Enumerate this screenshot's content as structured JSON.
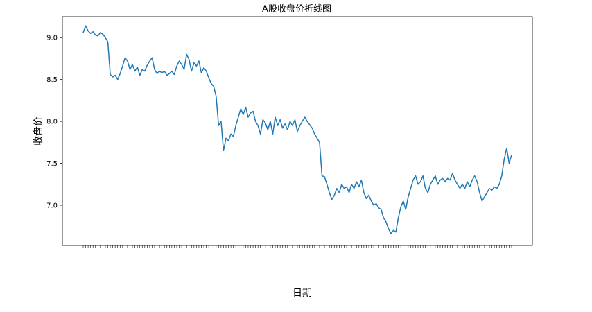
{
  "chart_data": {
    "type": "line",
    "title": "A股收盘价折线图",
    "xlabel": "日期",
    "ylabel": "收盘价",
    "ylim": [
      6.52,
      9.25
    ],
    "yticks": [
      7.0,
      7.5,
      8.0,
      8.5,
      9.0
    ],
    "ytick_labels": [
      "7.0",
      "7.5",
      "8.0",
      "8.5",
      "9.0"
    ],
    "grid": false,
    "line_color": "#1f77b4",
    "series": [
      {
        "values": [
          9.06,
          9.14,
          9.08,
          9.05,
          9.07,
          9.03,
          9.02,
          9.06,
          9.04,
          9.0,
          8.95,
          8.56,
          8.53,
          8.55,
          8.5,
          8.57,
          8.66,
          8.76,
          8.72,
          8.62,
          8.68,
          8.6,
          8.65,
          8.55,
          8.62,
          8.6,
          8.67,
          8.72,
          8.76,
          8.62,
          8.57,
          8.6,
          8.58,
          8.6,
          8.55,
          8.57,
          8.6,
          8.56,
          8.66,
          8.72,
          8.68,
          8.62,
          8.8,
          8.74,
          8.6,
          8.7,
          8.66,
          8.72,
          8.58,
          8.64,
          8.6,
          8.52,
          8.45,
          8.42,
          8.3,
          7.95,
          8.0,
          7.65,
          7.8,
          7.77,
          7.85,
          7.82,
          7.95,
          8.05,
          8.15,
          8.08,
          8.17,
          8.05,
          8.1,
          8.12,
          8.0,
          7.95,
          7.85,
          8.02,
          7.98,
          7.9,
          8.0,
          7.85,
          8.05,
          7.95,
          8.02,
          7.92,
          7.97,
          7.9,
          8.0,
          7.95,
          8.02,
          7.88,
          7.95,
          8.0,
          8.05,
          8.0,
          7.96,
          7.92,
          7.85,
          7.8,
          7.75,
          7.35,
          7.34,
          7.25,
          7.15,
          7.07,
          7.12,
          7.2,
          7.15,
          7.25,
          7.2,
          7.22,
          7.15,
          7.25,
          7.2,
          7.28,
          7.22,
          7.3,
          7.15,
          7.08,
          7.12,
          7.05,
          7.0,
          7.02,
          6.97,
          6.95,
          6.85,
          6.8,
          6.72,
          6.66,
          6.7,
          6.68,
          6.85,
          6.98,
          7.05,
          6.95,
          7.1,
          7.2,
          7.3,
          7.35,
          7.25,
          7.28,
          7.35,
          7.2,
          7.15,
          7.25,
          7.3,
          7.35,
          7.25,
          7.3,
          7.32,
          7.28,
          7.32,
          7.3,
          7.38,
          7.3,
          7.25,
          7.2,
          7.25,
          7.2,
          7.28,
          7.22,
          7.3,
          7.35,
          7.28,
          7.15,
          7.05,
          7.1,
          7.15,
          7.2,
          7.18,
          7.22,
          7.2,
          7.25,
          7.35,
          7.55,
          7.68,
          7.5,
          7.6
        ]
      }
    ]
  }
}
